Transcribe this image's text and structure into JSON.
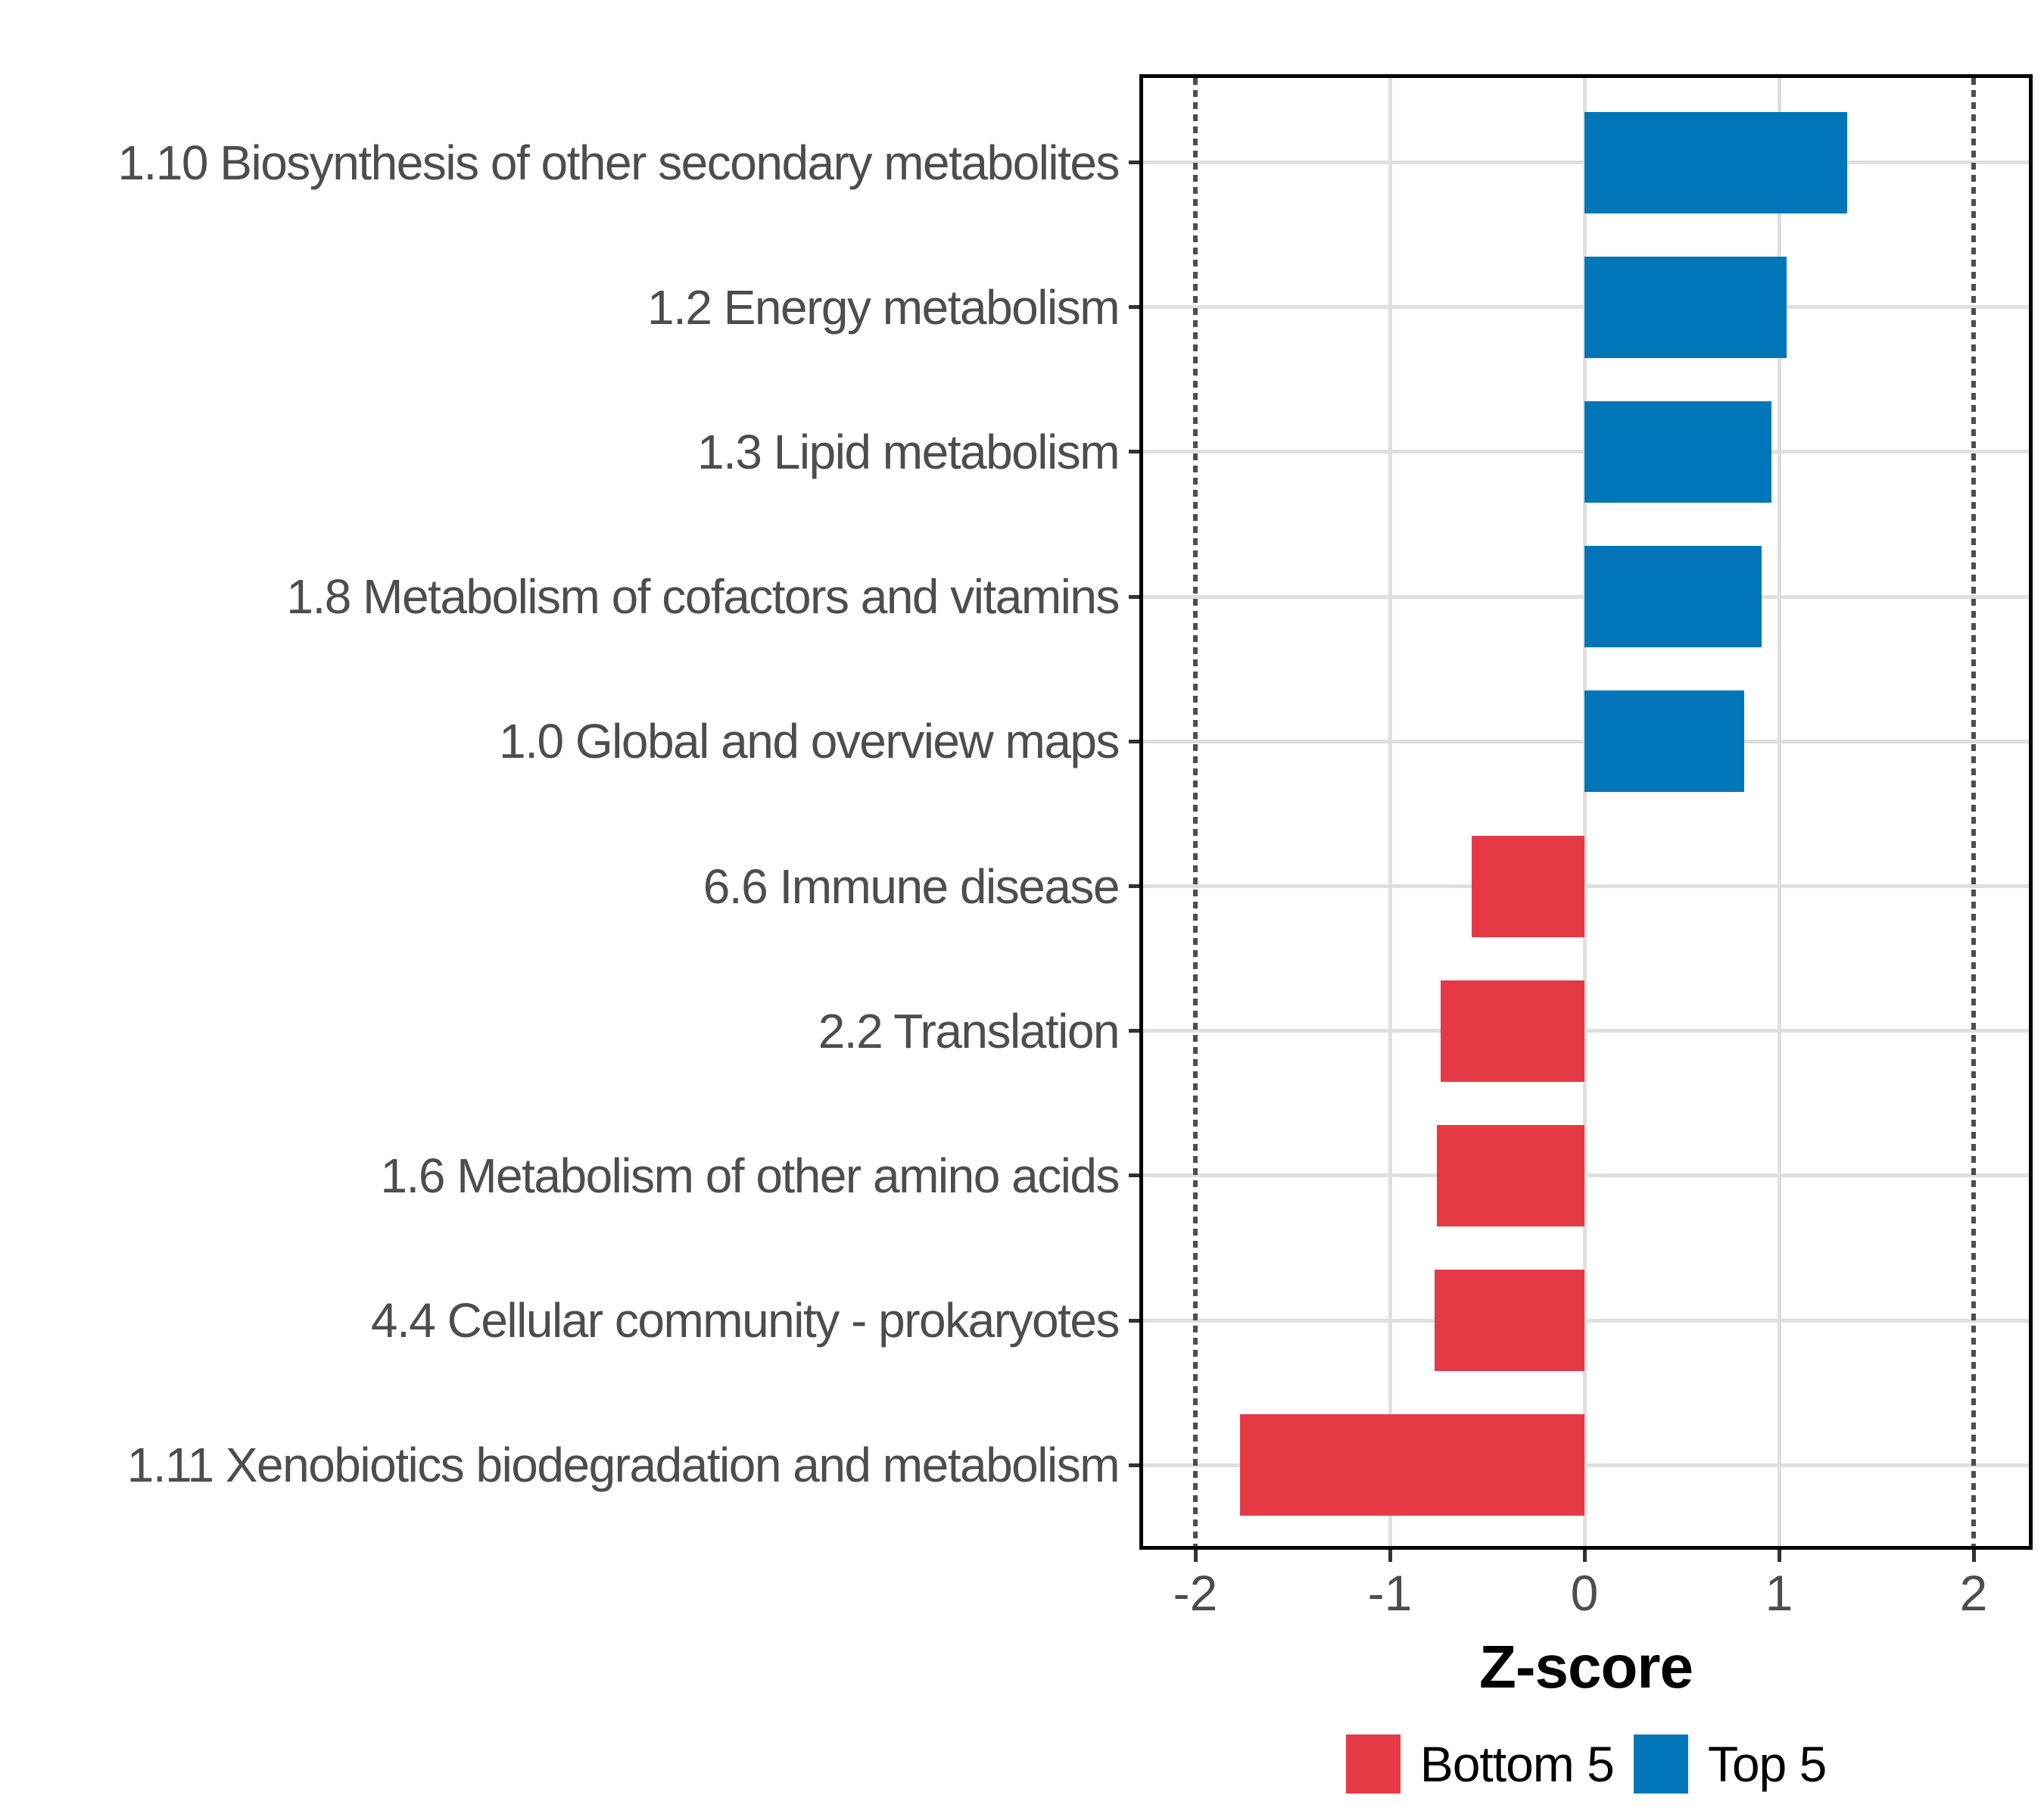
{
  "chart_data": {
    "type": "bar",
    "orientation": "horizontal",
    "title": "",
    "xlabel": "Z-score",
    "x_ticks": [
      -2,
      -1,
      0,
      1,
      2
    ],
    "x_gridlines": [
      -1,
      0,
      1
    ],
    "x_range": [
      -2.29,
      2.3
    ],
    "reference_lines": {
      "style": "dotted",
      "x": [
        -2,
        2
      ]
    },
    "grid": true,
    "legend_position": "bottom",
    "rows": [
      {
        "label": "1.10 Biosynthesis of other secondary metabolites",
        "value": 1.35,
        "group": "Top 5"
      },
      {
        "label": "1.2 Energy metabolism",
        "value": 1.04,
        "group": "Top 5"
      },
      {
        "label": "1.3 Lipid metabolism",
        "value": 0.96,
        "group": "Top 5"
      },
      {
        "label": "1.8 Metabolism of cofactors and vitamins",
        "value": 0.91,
        "group": "Top 5"
      },
      {
        "label": "1.0 Global and overview maps",
        "value": 0.82,
        "group": "Top 5"
      },
      {
        "label": "6.6 Immune disease",
        "value": -0.58,
        "group": "Bottom 5"
      },
      {
        "label": "2.2 Translation",
        "value": -0.74,
        "group": "Bottom 5"
      },
      {
        "label": "1.6 Metabolism of other amino acids",
        "value": -0.76,
        "group": "Bottom 5"
      },
      {
        "label": "4.4 Cellular community - prokaryotes",
        "value": -0.77,
        "group": "Bottom 5"
      },
      {
        "label": "1.11 Xenobiotics biodegradation and metabolism",
        "value": -1.77,
        "group": "Bottom 5"
      }
    ],
    "legend": [
      {
        "label": "Bottom 5",
        "color": "#E63946"
      },
      {
        "label": "Top 5",
        "color": "#0076B8"
      }
    ]
  },
  "colors": {
    "top5": "#0076B8",
    "bottom5": "#E63946",
    "grid": "#dfdfdf",
    "axis_text": "#4d4d4d",
    "tick_mark": "#333333",
    "panel_border": "#000000",
    "reference_line": "#4d4d4d"
  }
}
